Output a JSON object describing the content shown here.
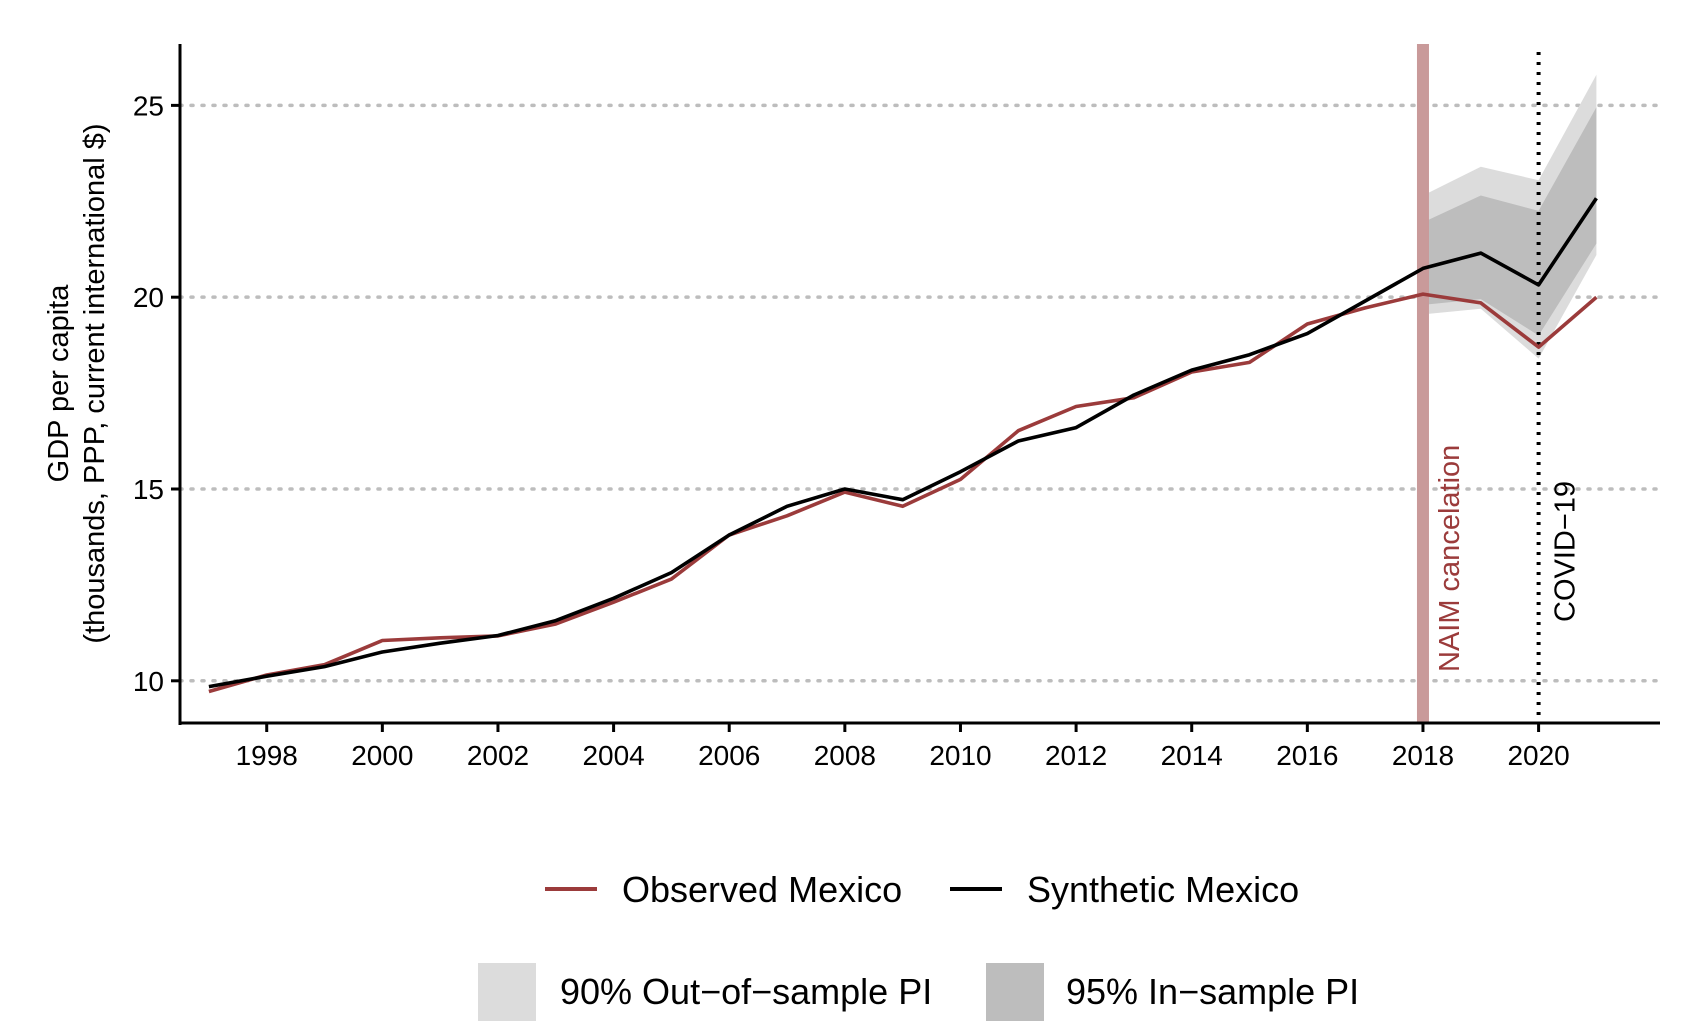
{
  "chart_data": {
    "type": "line",
    "title": "",
    "xlabel": "",
    "ylabel_lines": [
      "GDP per capita",
      "(thousands, PPP, current international $)"
    ],
    "xlim": [
      1996.5,
      2022.1
    ],
    "ylim": [
      8.9,
      26.6
    ],
    "x_ticks": [
      1998,
      2000,
      2002,
      2004,
      2006,
      2008,
      2010,
      2012,
      2014,
      2016,
      2018,
      2020
    ],
    "y_ticks": [
      10,
      15,
      20,
      25
    ],
    "grid": "horizontal dotted",
    "x": [
      1997,
      1998,
      1999,
      2000,
      2001,
      2002,
      2003,
      2004,
      2005,
      2006,
      2007,
      2008,
      2009,
      2010,
      2011,
      2012,
      2013,
      2014,
      2015,
      2016,
      2017,
      2018,
      2019,
      2020,
      2021
    ],
    "series": [
      {
        "name": "Observed Mexico",
        "color": "#9b3b3b",
        "values": [
          9.72,
          10.15,
          10.42,
          11.05,
          11.12,
          11.17,
          11.48,
          12.05,
          12.65,
          13.8,
          14.3,
          14.92,
          14.55,
          15.25,
          16.52,
          17.15,
          17.38,
          18.05,
          18.3,
          19.3,
          19.72,
          20.08,
          19.85,
          18.7,
          20.0
        ]
      },
      {
        "name": "Synthetic Mexico",
        "color": "#000000",
        "values": [
          9.85,
          10.12,
          10.37,
          10.75,
          10.98,
          11.18,
          11.57,
          12.15,
          12.82,
          13.8,
          14.55,
          15.0,
          14.72,
          15.45,
          16.25,
          16.6,
          17.45,
          18.1,
          18.5,
          19.05,
          19.9,
          20.75,
          21.15,
          20.32,
          22.58
        ]
      }
    ],
    "intervals": [
      {
        "name": "90% Out−of−sample PI",
        "color": "#dcdcdc",
        "x": [
          2018,
          2019,
          2020,
          2021
        ],
        "lower": [
          19.55,
          19.7,
          18.4,
          21.1
        ],
        "upper": [
          22.65,
          23.4,
          23.05,
          25.8
        ]
      },
      {
        "name": "95% In−sample PI",
        "color": "#bdbdbd",
        "x": [
          2018,
          2019,
          2020,
          2021
        ],
        "lower": [
          19.8,
          19.95,
          19.0,
          21.4
        ],
        "upper": [
          21.95,
          22.65,
          22.25,
          24.95
        ]
      }
    ],
    "annotations": [
      {
        "text": "NAIM cancelation",
        "x": 2018,
        "color": "#c99a9a",
        "label_color": "#9b3b3b",
        "style": "solid-band"
      },
      {
        "text": "COVID−19",
        "x": 2020,
        "color": "#000000",
        "label_color": "#000000",
        "style": "dotted"
      }
    ],
    "legend_placement": "bottom"
  }
}
